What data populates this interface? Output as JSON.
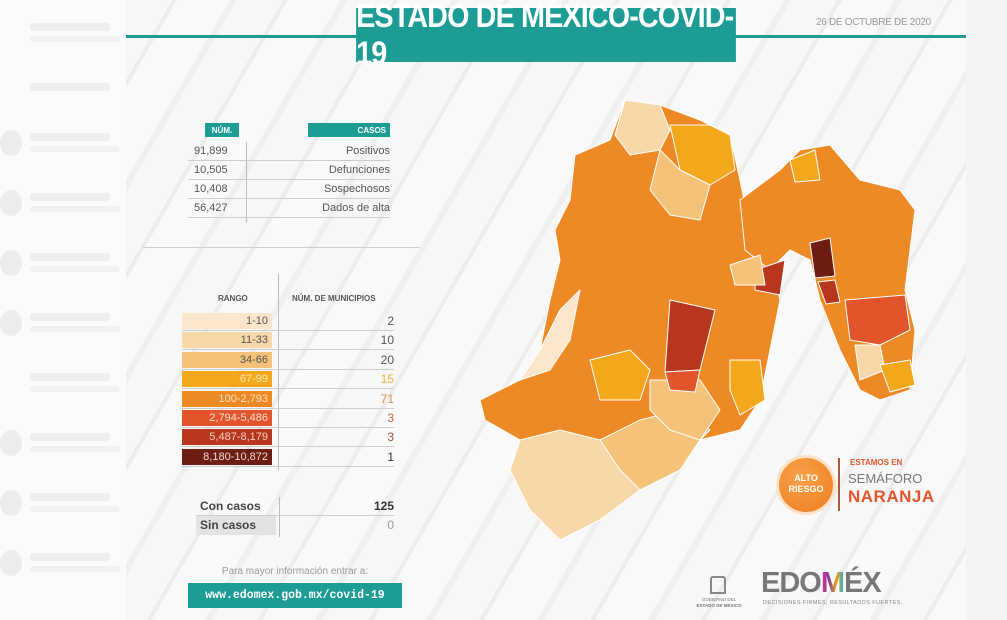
{
  "title": "ESTADO DE MÉXICO-COVID-19",
  "date": "26 DE OCTUBRE DE 2020",
  "summary": {
    "headers": {
      "num": "NÚM.",
      "casos": "CASOS"
    },
    "rows": [
      {
        "num": "91,899",
        "label": "Positivos"
      },
      {
        "num": "10,505",
        "label": "Defunciones"
      },
      {
        "num": "10,408",
        "label": "Sospechosos"
      },
      {
        "num": "56,427",
        "label": "Dados de alta"
      }
    ]
  },
  "ranges": {
    "headers": {
      "rango": "RANGO",
      "municipios": "NÚM. DE MUNICIPIOS"
    },
    "rows": [
      {
        "range": "1-10",
        "count": "2",
        "color": "#fbe6cb",
        "text": "#555",
        "valcolor": "#555"
      },
      {
        "range": "11-33",
        "count": "10",
        "color": "#f8d8a8",
        "text": "#555",
        "valcolor": "#555"
      },
      {
        "range": "34-66",
        "count": "20",
        "color": "#f5c27a",
        "text": "#555",
        "valcolor": "#555"
      },
      {
        "range": "67-99",
        "count": "15",
        "color": "#f3a81c",
        "text": "#fde9b8",
        "valcolor": "#e8b43a"
      },
      {
        "range": "100-2,793",
        "count": "71",
        "color": "#ee8a25",
        "text": "#fde0c0",
        "valcolor": "#d39352"
      },
      {
        "range": "2,794-5,486",
        "count": "3",
        "color": "#e2552c",
        "text": "#fde0d0",
        "valcolor": "#c9653f"
      },
      {
        "range": "5,487-8,179",
        "count": "3",
        "color": "#b8361e",
        "text": "#f7d0c0",
        "valcolor": "#a5503a"
      },
      {
        "range": "8,180-10,872",
        "count": "1",
        "color": "#6e1d12",
        "text": "#f3d8cc",
        "valcolor": "#333"
      }
    ],
    "totals": [
      {
        "label": "Con casos",
        "value": "125"
      },
      {
        "label": "Sin casos",
        "value": "0"
      }
    ]
  },
  "footer": {
    "more_info": "Para mayor información entrar a:",
    "url": "www.edomex.gob.mx/covid-19"
  },
  "semaforo": {
    "badge_line1": "ALTO",
    "badge_line2": "RIESGO",
    "line1": "ESTAMOS EN",
    "line2": "SEMÁFORO",
    "line3": "NARANJA"
  },
  "logos": {
    "gov_line1": "GOBIERNO DEL",
    "gov_line2": "ESTADO DE MÉXICO",
    "brand_pre": "EDO",
    "brand_m": "M",
    "brand_post": "ÉX",
    "tagline": "DECISIONES FIRMES, RESULTADOS FUERTES."
  },
  "colors": {
    "teal": "#1c9c95",
    "orange": "#ee8a25"
  }
}
